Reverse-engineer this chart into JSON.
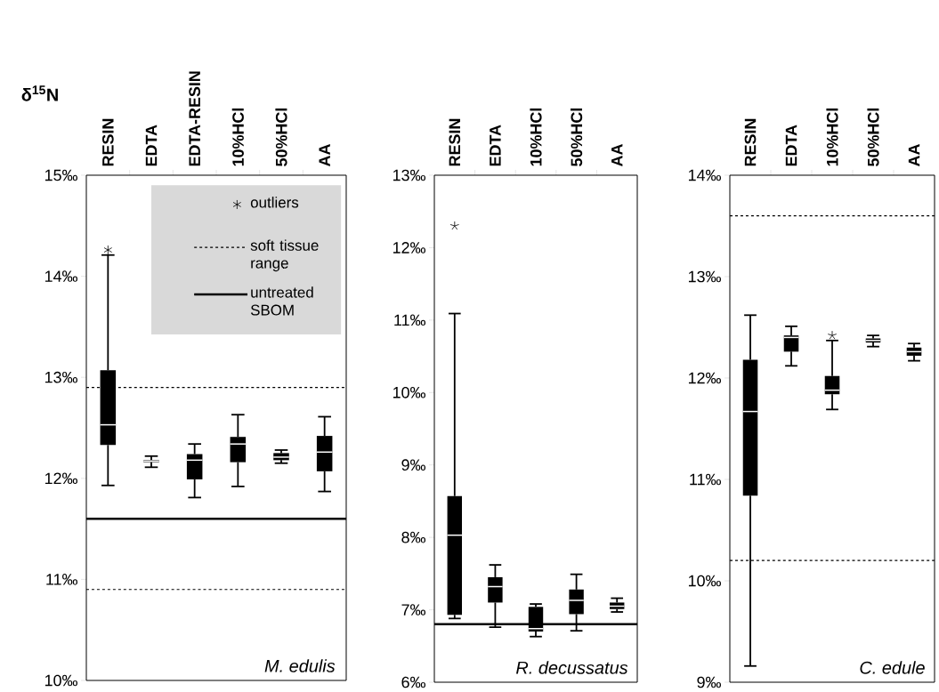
{
  "chart_data": [
    {
      "type": "box",
      "ylabel": "δ$^{15}$N",
      "color": "#000000",
      "legend": "top right",
      "categories": [
        "RESIN",
        "EDTA",
        "EDTA-RESIN",
        "10%HCl",
        "50%HCl",
        "AA"
      ],
      "boxes": [
        {
          "low": 11.93,
          "q1": 12.33,
          "median": 12.53,
          "q3": 13.07,
          "high": 14.21
        },
        {
          "low": 12.11,
          "q1": 12.16,
          "median": 12.17,
          "q3": 12.18,
          "high": 12.22
        },
        {
          "low": 11.81,
          "q1": 11.99,
          "median": 12.18,
          "q3": 12.24,
          "high": 12.34
        },
        {
          "low": 11.92,
          "q1": 12.16,
          "median": 12.34,
          "q3": 12.41,
          "high": 12.63
        },
        {
          "low": 12.15,
          "q1": 12.18,
          "median": 12.21,
          "q3": 12.25,
          "high": 12.28
        },
        {
          "low": 11.87,
          "q1": 12.07,
          "median": 12.26,
          "q3": 12.42,
          "high": 12.61
        }
      ],
      "series": [
        {
          "type": "scatter",
          "name": "outliers",
          "marker": "cross",
          "color": "#000000",
          "x": [
            "RESIN"
          ],
          "values": [
            14.26
          ]
        }
      ],
      "ylim": [
        10,
        15
      ],
      "yticks": [
        {
          "value": 10,
          "label": "10‰"
        },
        {
          "value": 11,
          "label": "11‰"
        },
        {
          "value": 12,
          "label": "12‰"
        },
        {
          "value": 13,
          "label": "13‰"
        },
        {
          "value": 14,
          "label": "14‰"
        },
        {
          "value": 15,
          "label": "15‰"
        }
      ],
      "ref_lines": [
        {
          "axis": "y",
          "value": 12.9,
          "label": "soft tissue range",
          "line_style": "dashed"
        },
        {
          "axis": "y",
          "value": 10.9,
          "line_style": "dashed"
        },
        {
          "axis": "y",
          "value": 11.6,
          "label": "untreated SBOM",
          "line_style": "solid"
        }
      ],
      "annotations": [
        "M. edulis"
      ]
    },
    {
      "type": "box",
      "color": "#000000",
      "categories": [
        "RESIN",
        "EDTA",
        "10%HCl",
        "50%HCl",
        "AA"
      ],
      "boxes": [
        {
          "low": 6.88,
          "q1": 6.93,
          "median": 8.03,
          "q3": 8.57,
          "high": 11.09,
          "outliers": [
            12.3
          ]
        },
        {
          "low": 6.76,
          "q1": 7.1,
          "median": 7.32,
          "q3": 7.45,
          "high": 7.62
        },
        {
          "low": 6.63,
          "q1": 6.7,
          "median": 6.74,
          "q3": 7.04,
          "high": 7.08
        },
        {
          "low": 6.71,
          "q1": 6.94,
          "median": 7.13,
          "q3": 7.28,
          "high": 7.49
        },
        {
          "low": 6.97,
          "q1": 7.01,
          "median": 7.05,
          "q3": 7.1,
          "high": 7.16
        }
      ],
      "ylim": [
        6,
        13
      ],
      "yticks": [
        {
          "value": 6,
          "label": "6‰"
        },
        {
          "value": 7,
          "label": "7‰"
        },
        {
          "value": 8,
          "label": "8‰"
        },
        {
          "value": 9,
          "label": "9‰"
        },
        {
          "value": 10,
          "label": "10‰"
        },
        {
          "value": 11,
          "label": "11‰"
        },
        {
          "value": 12,
          "label": "12‰"
        },
        {
          "value": 13,
          "label": "13‰"
        }
      ],
      "ref_lines": [
        {
          "axis": "y",
          "value": 6.8,
          "line_style": "solid"
        }
      ],
      "annotations": [
        "R. decussatus"
      ]
    },
    {
      "type": "box",
      "color": "#000000",
      "categories": [
        "RESIN",
        "EDTA",
        "10%HCl",
        "50%HCl",
        "AA"
      ],
      "boxes": [
        {
          "low": 9.16,
          "q1": 10.84,
          "median": 11.67,
          "q3": 12.18,
          "high": 12.62
        },
        {
          "low": 12.12,
          "q1": 12.26,
          "median": 12.4,
          "q3": 12.42,
          "high": 12.51
        },
        {
          "low": 11.69,
          "q1": 11.84,
          "median": 11.88,
          "q3": 12.02,
          "high": 12.37,
          "outliers": [
            12.42
          ]
        },
        {
          "low": 12.31,
          "q1": 12.35,
          "median": 12.37,
          "q3": 12.39,
          "high": 12.42
        },
        {
          "low": 12.17,
          "q1": 12.22,
          "median": 12.26,
          "q3": 12.3,
          "high": 12.34
        }
      ],
      "ylim": [
        9,
        14
      ],
      "yticks": [
        {
          "value": 9,
          "label": "9‰"
        },
        {
          "value": 10,
          "label": "10‰"
        },
        {
          "value": 11,
          "label": "11‰"
        },
        {
          "value": 12,
          "label": "12‰"
        },
        {
          "value": 13,
          "label": "13‰"
        },
        {
          "value": 14,
          "label": "14‰"
        }
      ],
      "ref_lines": [
        {
          "axis": "y",
          "value": 13.6,
          "line_style": "dashed"
        },
        {
          "axis": "y",
          "value": 10.2,
          "line_style": "dashed"
        }
      ],
      "annotations": [
        "C. edule"
      ]
    }
  ]
}
